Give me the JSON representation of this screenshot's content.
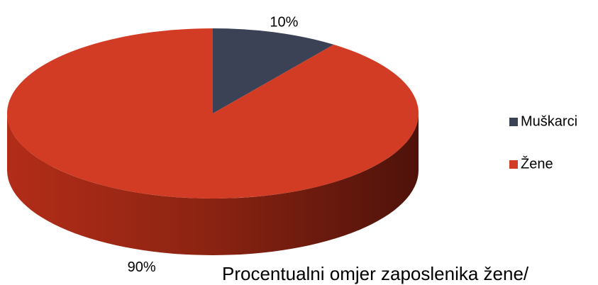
{
  "chart_data": {
    "type": "pie",
    "title": "Procentualni omjer zaposlenika žene/",
    "categories": [
      "Muškarci",
      "Žene"
    ],
    "values": [
      10,
      90
    ],
    "value_labels": [
      "10%",
      "90%"
    ],
    "colors": [
      "#3b4255",
      "#d33c24"
    ],
    "legend": "right"
  }
}
